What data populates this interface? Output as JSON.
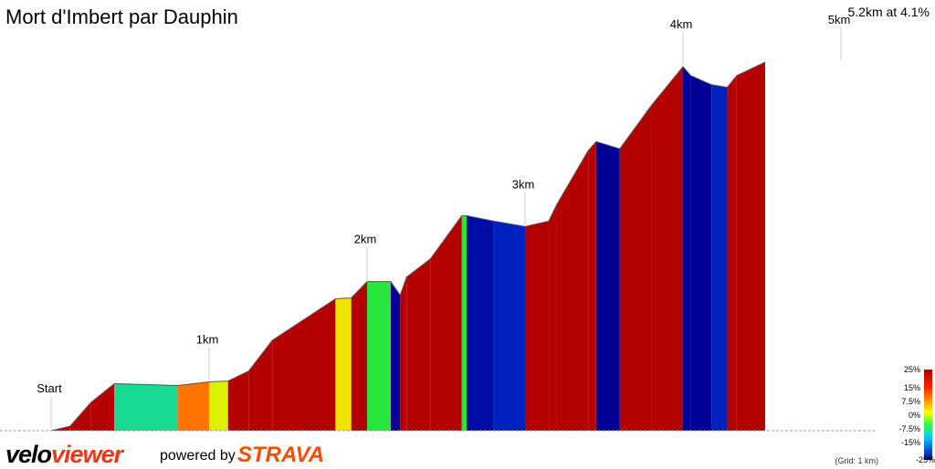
{
  "header": {
    "title": "Mort d'Imbert par Dauphin",
    "summary": "5.2km at 4.1%"
  },
  "footer": {
    "logo_velo": "velo",
    "logo_viewer": "viewer",
    "powered_by": "powered by",
    "strava": "STRAVA",
    "grid_note": "(Grid: 1 km)"
  },
  "legend": {
    "labels": [
      "25%",
      "15%",
      "7.5%",
      "0%",
      "-7.5%",
      "-15%",
      "-25%"
    ],
    "colors": [
      "#cc0000",
      "#ff3300",
      "#ff9900",
      "#ffff00",
      "#33ff33",
      "#00ccff",
      "#0000aa"
    ]
  },
  "chart_data": {
    "type": "area",
    "title": "Mort d'Imbert par Dauphin",
    "distance_km": 5.2,
    "average_gradient_pct": 4.1,
    "x_unit": "km",
    "markers": [
      {
        "label": "Start",
        "x": 0
      },
      {
        "label": "1km",
        "x": 1
      },
      {
        "label": "2km",
        "x": 2
      },
      {
        "label": "3km",
        "x": 3
      },
      {
        "label": "4km",
        "x": 4
      },
      {
        "label": "5km",
        "x": 5
      }
    ],
    "profile": [
      [
        0.0,
        0
      ],
      [
        0.12,
        5
      ],
      [
        0.25,
        31
      ],
      [
        0.4,
        52
      ],
      [
        0.8,
        50
      ],
      [
        1.0,
        54
      ],
      [
        1.12,
        55
      ],
      [
        1.25,
        66
      ],
      [
        1.4,
        100
      ],
      [
        1.8,
        146
      ],
      [
        1.9,
        147
      ],
      [
        2.0,
        165
      ],
      [
        2.15,
        165
      ],
      [
        2.21,
        150
      ],
      [
        2.25,
        170
      ],
      [
        2.4,
        190
      ],
      [
        2.6,
        238
      ],
      [
        2.63,
        238
      ],
      [
        2.8,
        232
      ],
      [
        3.0,
        226
      ],
      [
        3.15,
        232
      ],
      [
        3.2,
        250
      ],
      [
        3.4,
        310
      ],
      [
        3.45,
        320
      ],
      [
        3.6,
        312
      ],
      [
        3.8,
        360
      ],
      [
        4.0,
        403
      ],
      [
        4.05,
        393
      ],
      [
        4.18,
        383
      ],
      [
        4.28,
        380
      ],
      [
        4.34,
        393
      ],
      [
        4.52,
        408
      ]
    ]
  }
}
